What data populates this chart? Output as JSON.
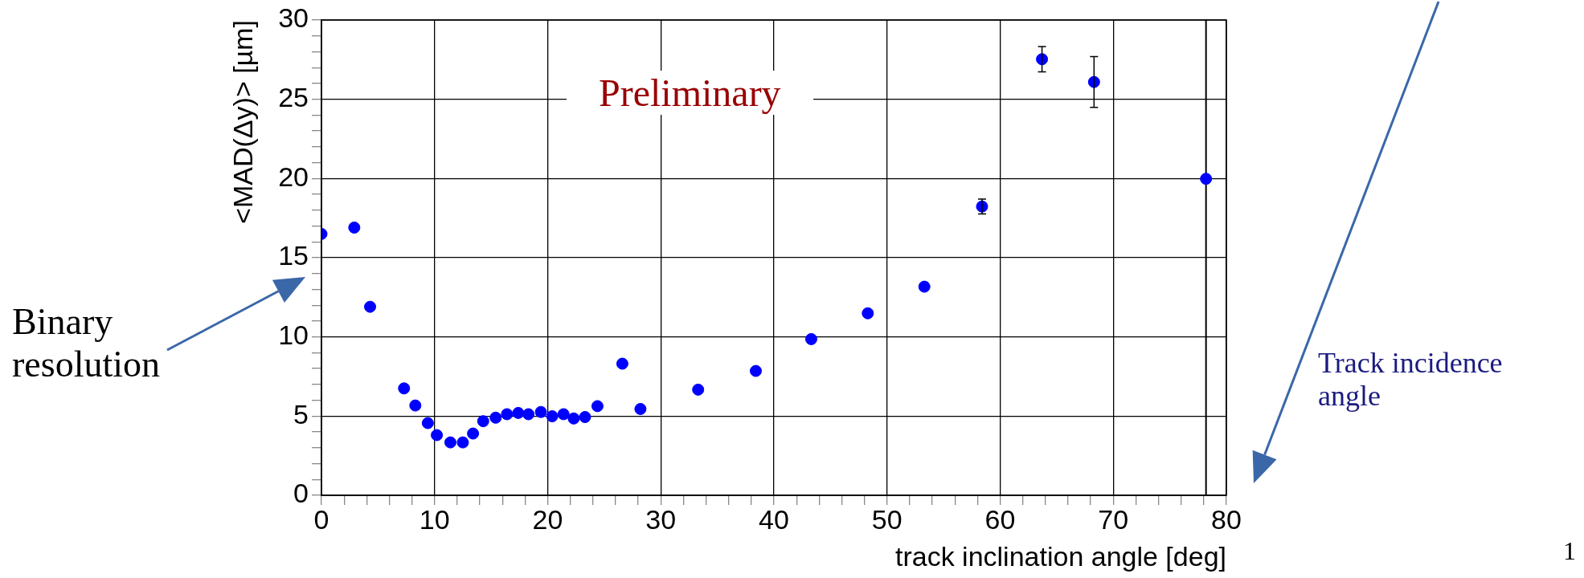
{
  "chart_data": {
    "type": "scatter",
    "xlabel": "track inclination angle [deg]",
    "ylabel": "<MAD(Δy)> [µm]",
    "x": [
      0,
      2.9,
      4.3,
      7.3,
      8.3,
      9.4,
      10.2,
      11.4,
      12.5,
      13.4,
      14.3,
      15.4,
      16.4,
      17.4,
      18.3,
      19.4,
      20.4,
      21.4,
      22.3,
      23.3,
      24.4,
      26.6,
      28.2,
      33.3,
      38.4,
      43.3,
      48.3,
      53.3,
      58.4,
      63.7,
      68.3,
      78.2
    ],
    "series": [
      {
        "color": "#0000ff",
        "values": [
          16.5,
          16.9,
          11.9,
          6.75,
          5.67,
          4.56,
          3.8,
          3.34,
          3.34,
          3.9,
          4.68,
          4.9,
          5.12,
          5.2,
          5.12,
          5.26,
          4.99,
          5.12,
          4.85,
          4.94,
          5.63,
          8.31,
          5.45,
          6.67,
          7.85,
          9.86,
          11.49,
          13.17,
          18.23,
          27.53,
          26.09,
          19.98
        ],
        "errors": [
          null,
          null,
          null,
          null,
          null,
          null,
          null,
          null,
          null,
          null,
          null,
          null,
          null,
          null,
          null,
          null,
          null,
          null,
          null,
          null,
          null,
          null,
          null,
          null,
          null,
          null,
          null,
          null,
          0.47,
          0.8,
          1.6,
          null
        ]
      }
    ],
    "xlim": [
      0,
      80
    ],
    "ylim": [
      0,
      30
    ],
    "xticks": [
      0,
      {
        "value": 2,
        "label": null
      },
      {
        "value": 4,
        "label": null
      },
      {
        "value": 6,
        "label": null
      },
      {
        "value": 8,
        "label": null
      },
      10,
      {
        "value": 12,
        "label": null
      },
      {
        "value": 14,
        "label": null
      },
      {
        "value": 16,
        "label": null
      },
      {
        "value": 18,
        "label": null
      },
      20,
      {
        "value": 22,
        "label": null
      },
      {
        "value": 24,
        "label": null
      },
      {
        "value": 26,
        "label": null
      },
      {
        "value": 28,
        "label": null
      },
      30,
      {
        "value": 32,
        "label": null
      },
      {
        "value": 34,
        "label": null
      },
      {
        "value": 36,
        "label": null
      },
      {
        "value": 38,
        "label": null
      },
      40,
      {
        "value": 42,
        "label": null
      },
      {
        "value": 44,
        "label": null
      },
      {
        "value": 46,
        "label": null
      },
      {
        "value": 48,
        "label": null
      },
      50,
      {
        "value": 52,
        "label": null
      },
      {
        "value": 54,
        "label": null
      },
      {
        "value": 56,
        "label": null
      },
      {
        "value": 58,
        "label": null
      },
      60,
      {
        "value": 62,
        "label": null
      },
      {
        "value": 64,
        "label": null
      },
      {
        "value": 66,
        "label": null
      },
      {
        "value": 68,
        "label": null
      },
      70,
      {
        "value": 72,
        "label": null
      },
      {
        "value": 74,
        "label": null
      },
      {
        "value": 76,
        "label": null
      },
      {
        "value": 78,
        "label": null
      },
      80
    ],
    "yticks": [
      0,
      {
        "value": 1,
        "label": null
      },
      {
        "value": 2,
        "label": null
      },
      {
        "value": 3,
        "label": null
      },
      {
        "value": 4,
        "label": null
      },
      5,
      {
        "value": 6,
        "label": null
      },
      {
        "value": 7,
        "label": null
      },
      {
        "value": 8,
        "label": null
      },
      {
        "value": 9,
        "label": null
      },
      10,
      {
        "value": 11,
        "label": null
      },
      {
        "value": 12,
        "label": null
      },
      {
        "value": 13,
        "label": null
      },
      {
        "value": 14,
        "label": null
      },
      15,
      {
        "value": 16,
        "label": null
      },
      {
        "value": 17,
        "label": null
      },
      {
        "value": 18,
        "label": null
      },
      {
        "value": 19,
        "label": null
      },
      20,
      {
        "value": 21,
        "label": null
      },
      {
        "value": 22,
        "label": null
      },
      {
        "value": 23,
        "label": null
      },
      {
        "value": 24,
        "label": null
      },
      25,
      {
        "value": 26,
        "label": null
      },
      {
        "value": 27,
        "label": null
      },
      {
        "value": 28,
        "label": null
      },
      {
        "value": 29,
        "label": null
      },
      30
    ],
    "grid": true,
    "legend": false,
    "marker": "circle",
    "ref_lines": [
      {
        "axis": "x",
        "value": 78.2,
        "color": "#000000"
      }
    ],
    "annotations": [
      "Preliminary",
      "Binary resolution",
      "Track incidence angle",
      "1"
    ]
  }
}
